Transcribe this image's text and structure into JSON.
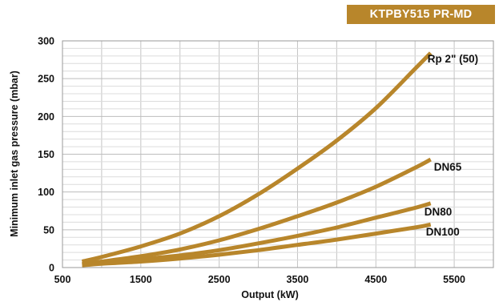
{
  "badge": {
    "text": "KTPBY515 PR-MD",
    "color": "#b8862b"
  },
  "chart_data": {
    "type": "line",
    "title": "",
    "xlabel": "Output (kW)",
    "ylabel": "Minimum inlet gas pressure (mbar)",
    "xlim": [
      500,
      6000
    ],
    "ylim": [
      0,
      300
    ],
    "x_ticks": [
      500,
      1500,
      2500,
      3500,
      4500,
      5500
    ],
    "y_ticks": [
      0,
      50,
      100,
      150,
      200,
      250,
      300
    ],
    "grid": true,
    "line_color": "#b8862b",
    "series": [
      {
        "name": "Rp 2\" (50)",
        "x": [
          750,
          1000,
          1500,
          2000,
          2500,
          3000,
          3500,
          4000,
          4500,
          5000,
          5200
        ],
        "y": [
          8,
          14,
          28,
          45,
          68,
          97,
          131,
          168,
          211,
          263,
          284
        ]
      },
      {
        "name": "DN65",
        "x": [
          750,
          1000,
          1500,
          2000,
          2500,
          3000,
          3500,
          4000,
          4500,
          5000,
          5200
        ],
        "y": [
          5,
          8,
          15,
          24,
          36,
          51,
          68,
          86,
          107,
          132,
          143
        ]
      },
      {
        "name": "DN80",
        "x": [
          750,
          1000,
          1500,
          2000,
          2500,
          3000,
          3500,
          4000,
          4500,
          5000,
          5200
        ],
        "y": [
          4,
          6,
          11,
          16,
          23,
          32,
          42,
          53,
          66,
          79,
          85
        ]
      },
      {
        "name": "DN100",
        "x": [
          750,
          1000,
          1500,
          2000,
          2500,
          3000,
          3500,
          4000,
          4500,
          5000,
          5200
        ],
        "y": [
          3,
          5,
          8,
          12,
          17,
          23,
          30,
          37,
          45,
          53,
          57
        ]
      }
    ]
  }
}
